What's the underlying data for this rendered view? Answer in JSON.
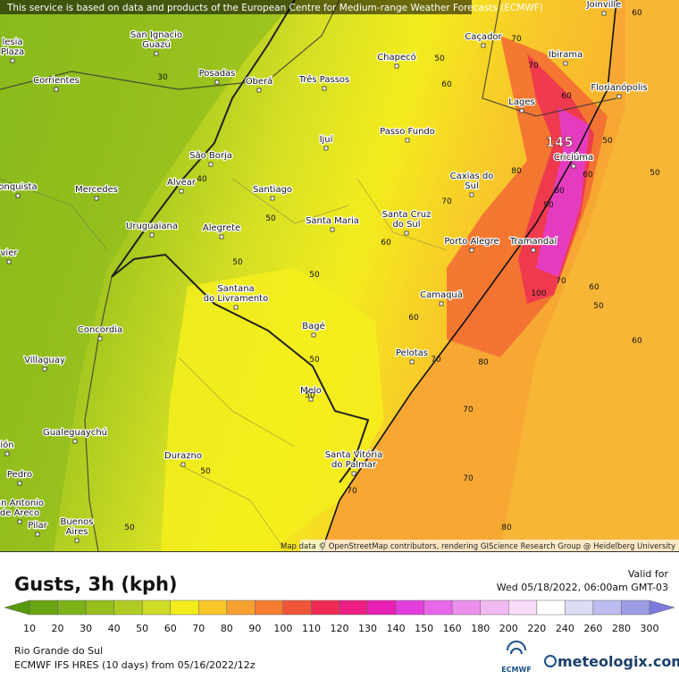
{
  "header": {
    "notice": "This service is based on data and products of the European Centre for Medium-range Weather Forecasts (ECMWF)"
  },
  "map": {
    "cities": [
      [
        "Joinville"
      ],
      [
        "Caçador"
      ],
      [
        "Ibirama"
      ],
      [
        "Florianópolis"
      ],
      [
        "Chapecó"
      ],
      [
        "San Ignacio",
        "Guazú"
      ],
      [
        "lesia",
        "Plaza"
      ],
      [
        "Corrientes"
      ],
      [
        "Posadas"
      ],
      [
        "Oberá"
      ],
      [
        "Três Passos"
      ],
      [
        "Ijuí"
      ],
      [
        "Passo Fundo"
      ],
      [
        "Lages"
      ],
      [
        "Criciúma"
      ],
      [
        "São Borja"
      ],
      [
        "Alvear"
      ],
      [
        "Mercedes"
      ],
      [
        "Santiago"
      ],
      [
        "Caxias do",
        "Sul"
      ],
      [
        "Santa Maria"
      ],
      [
        "Santa Cruz",
        "do Sul"
      ],
      [
        "Uruguaiana"
      ],
      [
        "Alegrete"
      ],
      [
        "Porto Alegre"
      ],
      [
        "Tramandaí"
      ],
      [
        "Santana",
        "do Livramento"
      ],
      [
        "Camaquã"
      ],
      [
        "Concordia"
      ],
      [
        "Bagé"
      ],
      [
        "Pelotas"
      ],
      [
        "Villaguay"
      ],
      [
        "Melo"
      ],
      [
        "Gualeguaychú"
      ],
      [
        "Durazno"
      ],
      [
        "Santa Vitória",
        "do Palmar"
      ],
      [
        "Buenos",
        "Aires"
      ],
      [
        "Pilar"
      ],
      [
        "an Antonio",
        "de Areco"
      ],
      [
        "onquista"
      ],
      [
        "vier"
      ],
      [
        "ión"
      ],
      [
        "Pedro"
      ]
    ],
    "contour_labels": [
      60,
      70,
      70,
      50,
      60,
      60,
      50,
      50,
      30,
      40,
      50,
      50,
      50,
      60,
      70,
      60,
      80,
      80,
      90,
      100,
      70,
      60,
      50,
      50,
      60,
      70,
      80,
      70,
      70,
      70,
      80,
      50,
      50,
      50,
      60
    ],
    "max_label": "145",
    "attribution": "Map data © OpenStreetMap contributors, rendering GIScience Research Group @ Heidelberg University"
  },
  "legend": {
    "title": "Gusts, 3h (kph)",
    "valid_label": "Valid for",
    "valid_time": "Wed 05/18/2022, 06:00am GMT-03",
    "ticks": [
      10,
      20,
      30,
      40,
      50,
      60,
      70,
      80,
      90,
      100,
      110,
      120,
      130,
      140,
      150,
      160,
      180,
      200,
      220,
      240,
      260,
      280,
      300
    ],
    "colors": [
      "#56990c",
      "#68a512",
      "#7db219",
      "#96bf1e",
      "#b0cc22",
      "#cddc24",
      "#f2ec1c",
      "#f8c82a",
      "#f6a030",
      "#f47d30",
      "#f05538",
      "#ee2c55",
      "#ec1f85",
      "#e81fb4",
      "#e23ddc",
      "#e866e8",
      "#ec90ec",
      "#f2b8f2",
      "#f8dcf8",
      "#ffffff",
      "#dcdcf5",
      "#bcbcee",
      "#9d9de6",
      "#7b7bde"
    ]
  },
  "footer": {
    "region": "Rio Grande do Sul",
    "model": "ECMWF IFS HRES (10 days) from 05/16/2022/12z",
    "ecmwf": "ECMWF",
    "brand": "meteologix.com"
  }
}
